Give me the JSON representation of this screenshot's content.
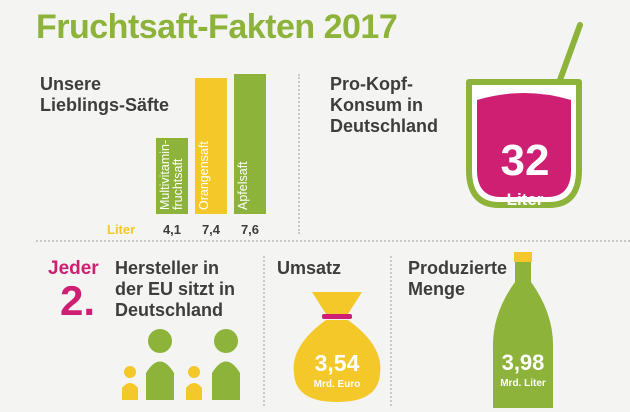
{
  "title": "Fruchtsaft-Fakten 2017",
  "colors": {
    "green": "#8db33a",
    "yellow": "#f4c828",
    "pink": "#cf1f72",
    "text": "#3d3d3d"
  },
  "favorites": {
    "heading_line1": "Unsere",
    "heading_line2": "Lieblings-Säfte",
    "unit_label": "Liter"
  },
  "chart_data": {
    "type": "bar",
    "categories": [
      "Multivitamin-fruchtsaft",
      "Orangensaft",
      "Apfelsaft"
    ],
    "category_lines": [
      [
        "Multivitamin-",
        "fruchtsaft"
      ],
      [
        "Orangensaft"
      ],
      [
        "Apfelsaft"
      ]
    ],
    "values": [
      4.1,
      7.4,
      7.6
    ],
    "value_labels": [
      "4,1",
      "7,4",
      "7,6"
    ],
    "colors": [
      "#8db33a",
      "#f4c828",
      "#8db33a"
    ],
    "unit": "Liter",
    "title": "Unsere Lieblings-Säfte",
    "xlabel": "",
    "ylabel": "",
    "ylim": [
      0,
      7.6
    ]
  },
  "consumption": {
    "heading_line1": "Pro-Kopf-",
    "heading_line2": "Konsum in",
    "heading_line3": "Deutschland",
    "value": "32",
    "unit": "Liter"
  },
  "manufacturer": {
    "jeder": "Jeder",
    "rank": "2.",
    "text_line1": "Hersteller in",
    "text_line2": "der EU sitzt in",
    "text_line3": "Deutschland"
  },
  "revenue": {
    "heading": "Umsatz",
    "value": "3,54",
    "unit": "Mrd. Euro"
  },
  "production": {
    "heading_line1": "Produzierte",
    "heading_line2": "Menge",
    "value": "3,98",
    "unit": "Mrd. Liter"
  }
}
